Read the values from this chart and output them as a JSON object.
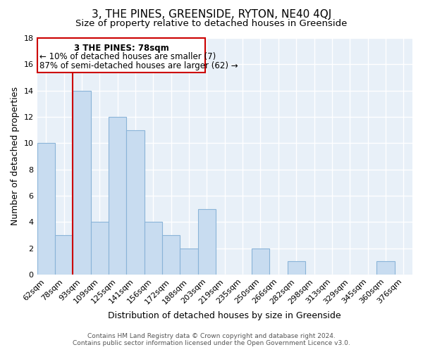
{
  "title": "3, THE PINES, GREENSIDE, RYTON, NE40 4QJ",
  "subtitle": "Size of property relative to detached houses in Greenside",
  "xlabel": "Distribution of detached houses by size in Greenside",
  "ylabel": "Number of detached properties",
  "bin_labels": [
    "62sqm",
    "78sqm",
    "93sqm",
    "109sqm",
    "125sqm",
    "141sqm",
    "156sqm",
    "172sqm",
    "188sqm",
    "203sqm",
    "219sqm",
    "235sqm",
    "250sqm",
    "266sqm",
    "282sqm",
    "298sqm",
    "313sqm",
    "329sqm",
    "345sqm",
    "360sqm",
    "376sqm"
  ],
  "bar_values": [
    10,
    3,
    14,
    4,
    12,
    11,
    4,
    3,
    2,
    5,
    0,
    0,
    2,
    0,
    1,
    0,
    0,
    0,
    0,
    1,
    0
  ],
  "highlight_index": 1,
  "bar_color": "#c8dcf0",
  "bar_edge_color": "#8ab4d8",
  "highlight_line_color": "#cc0000",
  "annotation_box_edge": "#cc0000",
  "annotation_text_line1": "3 THE PINES: 78sqm",
  "annotation_text_line2": "← 10% of detached houses are smaller (7)",
  "annotation_text_line3": "87% of semi-detached houses are larger (62) →",
  "ylim": [
    0,
    18
  ],
  "yticks": [
    0,
    2,
    4,
    6,
    8,
    10,
    12,
    14,
    16,
    18
  ],
  "background_color": "#ffffff",
  "plot_bg_color": "#e8f0f8",
  "grid_color": "#ffffff",
  "title_fontsize": 11,
  "subtitle_fontsize": 9.5,
  "axis_label_fontsize": 9,
  "tick_fontsize": 8,
  "annotation_fontsize": 8.5,
  "footer_fontsize": 6.5,
  "footer_line1": "Contains HM Land Registry data © Crown copyright and database right 2024.",
  "footer_line2": "Contains public sector information licensed under the Open Government Licence v3.0."
}
